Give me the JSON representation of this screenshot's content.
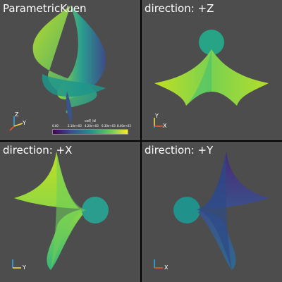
{
  "panes": [
    {
      "title": "ParametricKuen"
    },
    {
      "title": "direction: +Z"
    },
    {
      "title": "direction: +X"
    },
    {
      "title": "direction: +Y"
    }
  ],
  "axes": {
    "z": "Z",
    "y": "Y",
    "x": "X",
    "colors": {
      "x": "#e35b2b",
      "y": "#f5d94a",
      "z": "#2ea9e8"
    }
  },
  "colorbar": {
    "title": "cell_id",
    "ticks": [
      "0.00",
      "2.10e+03",
      "4.20e+03",
      "6.30e+03",
      "8.40e+03"
    ],
    "colormap": [
      "#440154",
      "#3b528b",
      "#21918c",
      "#5ec962",
      "#fde725"
    ]
  },
  "background": "#4d4d4d"
}
